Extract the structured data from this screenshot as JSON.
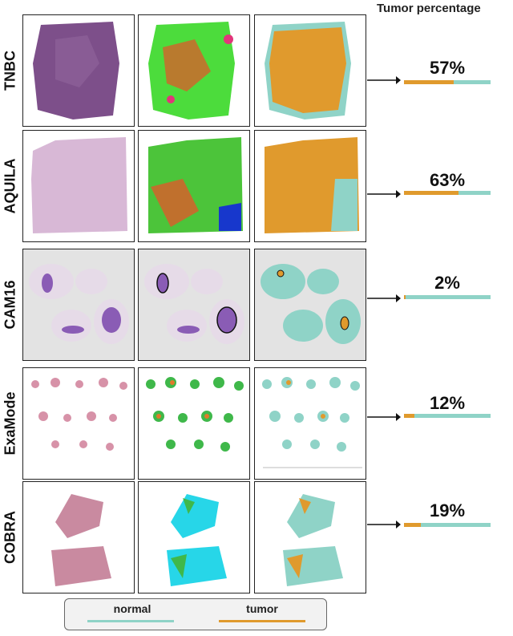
{
  "header": {
    "title": "Tumor percentage"
  },
  "rows": [
    {
      "label": "TNBC",
      "percent_label": "57%",
      "tumor_fraction": 0.57
    },
    {
      "label": "AQUILA",
      "percent_label": "63%",
      "tumor_fraction": 0.63
    },
    {
      "label": "CAM16",
      "percent_label": "2%",
      "tumor_fraction": 0.02
    },
    {
      "label": "ExaMode",
      "percent_label": "12%",
      "tumor_fraction": 0.12
    },
    {
      "label": "COBRA",
      "percent_label": "19%",
      "tumor_fraction": 0.19
    }
  ],
  "legend": {
    "normal_label": "normal",
    "tumor_label": "tumor",
    "normal_color": "#8fd3c7",
    "tumor_color": "#e09a2d"
  }
}
